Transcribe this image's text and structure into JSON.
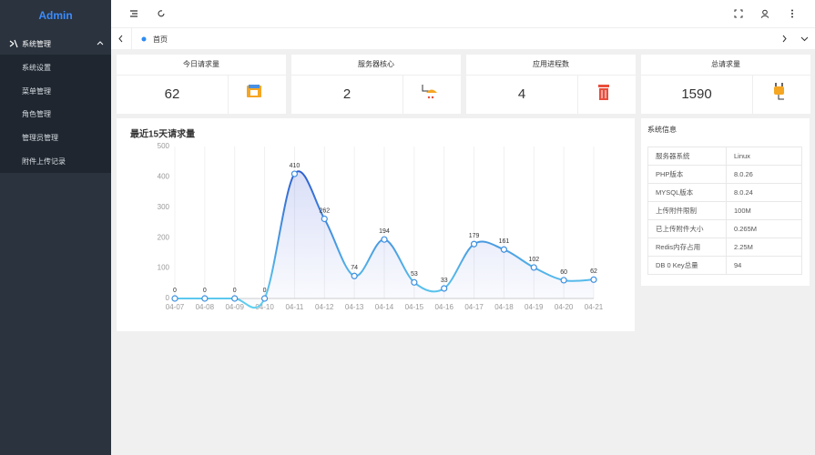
{
  "sidebar": {
    "brand": "Admin",
    "menu": {
      "label": "系统管理",
      "items": [
        "系统设置",
        "菜单管理",
        "角色管理",
        "管理员管理",
        "附件上传记录"
      ]
    }
  },
  "tabs": [
    "首页"
  ],
  "cards": [
    {
      "title": "今日请求量",
      "value": 62
    },
    {
      "title": "服务器核心",
      "value": 2
    },
    {
      "title": "应用进程数",
      "value": 4
    },
    {
      "title": "总请求量",
      "value": 1590
    }
  ],
  "chart_data": {
    "type": "line",
    "title": "最近15天请求量",
    "categories": [
      "04-07",
      "04-08",
      "04-09",
      "04-10",
      "04-11",
      "04-12",
      "04-13",
      "04-14",
      "04-15",
      "04-16",
      "04-17",
      "04-18",
      "04-19",
      "04-20",
      "04-21"
    ],
    "series": [
      {
        "name": "请求量",
        "color": "#3d8fe0",
        "values": [
          0,
          0,
          0,
          0,
          410,
          262,
          74,
          194,
          53,
          33,
          179,
          161,
          102,
          60,
          62
        ]
      }
    ],
    "ylim": [
      0,
      500
    ],
    "yticks": [
      0,
      100,
      200,
      300,
      400,
      500
    ],
    "grid": true,
    "smooth": true
  },
  "system_info": {
    "title": "系统信息",
    "rows": [
      [
        "服务器系统",
        "Linux"
      ],
      [
        "PHP版本",
        "8.0.26"
      ],
      [
        "MYSQL版本",
        "8.0.24"
      ],
      [
        "上传附件限制",
        "100M"
      ],
      [
        "已上传附件大小",
        "0.265M"
      ],
      [
        "Redis内存占用",
        "2.25M"
      ],
      [
        "DB 0 Key总量",
        "94"
      ]
    ]
  }
}
